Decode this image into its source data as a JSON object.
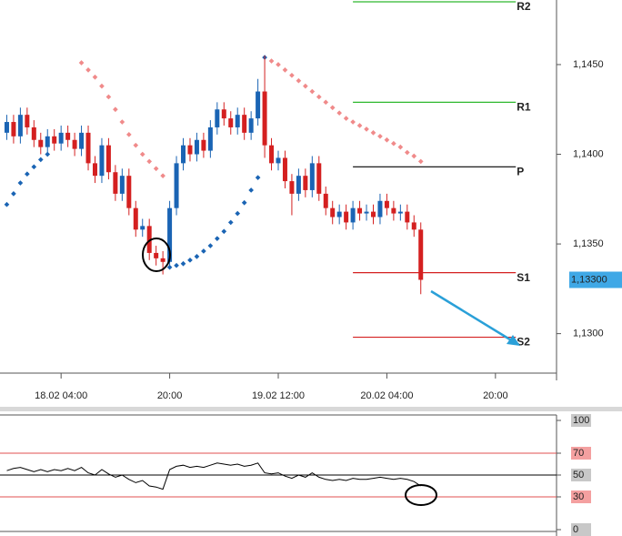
{
  "chart_data": {
    "type": "candlestick",
    "x": [
      "17.02 20:00",
      "17.02 21:00",
      "17.02 22:00",
      "17.02 23:00",
      "18.02 00:00",
      "18.02 01:00",
      "18.02 02:00",
      "18.02 03:00",
      "18.02 04:00",
      "18.02 05:00",
      "18.02 06:00",
      "18.02 07:00",
      "18.02 08:00",
      "18.02 09:00",
      "18.02 10:00",
      "18.02 11:00",
      "18.02 12:00",
      "18.02 13:00",
      "18.02 14:00",
      "18.02 15:00",
      "18.02 16:00",
      "18.02 17:00",
      "18.02 18:00",
      "18.02 19:00",
      "18.02 20:00",
      "18.02 21:00",
      "18.02 22:00",
      "18.02 23:00",
      "19.02 00:00",
      "19.02 01:00",
      "19.02 02:00",
      "19.02 03:00",
      "19.02 04:00",
      "19.02 05:00",
      "19.02 06:00",
      "19.02 07:00",
      "19.02 08:00",
      "19.02 09:00",
      "19.02 10:00",
      "19.02 11:00",
      "19.02 12:00",
      "19.02 13:00",
      "19.02 14:00",
      "19.02 15:00",
      "19.02 16:00",
      "19.02 17:00",
      "19.02 18:00",
      "19.02 19:00",
      "19.02 20:00",
      "19.02 21:00",
      "19.02 22:00",
      "19.02 23:00",
      "20.02 00:00",
      "20.02 01:00",
      "20.02 02:00",
      "20.02 03:00",
      "20.02 04:00",
      "20.02 05:00",
      "20.02 06:00",
      "20.02 07:00",
      "20.02 08:00",
      "20.02 09:00"
    ],
    "open": [
      1.1412,
      1.1418,
      1.141,
      1.1422,
      1.1415,
      1.1408,
      1.1404,
      1.141,
      1.1406,
      1.1412,
      1.1408,
      1.1403,
      1.1412,
      1.1395,
      1.1388,
      1.1405,
      1.139,
      1.1378,
      1.1388,
      1.137,
      1.1358,
      1.136,
      1.1345,
      1.1342,
      1.134,
      1.137,
      1.1395,
      1.1405,
      1.14,
      1.1408,
      1.1402,
      1.1415,
      1.1425,
      1.142,
      1.1415,
      1.1422,
      1.1412,
      1.142,
      1.1435,
      1.1405,
      1.1395,
      1.1398,
      1.1385,
      1.1378,
      1.1388,
      1.138,
      1.1395,
      1.1378,
      1.137,
      1.1365,
      1.1368,
      1.1362,
      1.137,
      1.1367,
      1.1368,
      1.1365,
      1.1374,
      1.137,
      1.1367,
      1.1368,
      1.1362,
      1.1358
    ],
    "high": [
      1.1422,
      1.1422,
      1.1426,
      1.1426,
      1.1419,
      1.1412,
      1.1414,
      1.1414,
      1.1416,
      1.1416,
      1.1412,
      1.1416,
      1.1416,
      1.1399,
      1.1409,
      1.1409,
      1.1394,
      1.1392,
      1.1392,
      1.1374,
      1.1364,
      1.1364,
      1.1349,
      1.1346,
      1.1374,
      1.1399,
      1.1409,
      1.1409,
      1.1412,
      1.1412,
      1.1419,
      1.1429,
      1.1429,
      1.1424,
      1.1426,
      1.1426,
      1.1424,
      1.1442,
      1.1455,
      1.1409,
      1.1402,
      1.1402,
      1.1389,
      1.1392,
      1.1392,
      1.1399,
      1.1399,
      1.1382,
      1.1374,
      1.1372,
      1.1372,
      1.1374,
      1.1374,
      1.1372,
      1.1372,
      1.1378,
      1.1378,
      1.1374,
      1.1372,
      1.1372,
      1.1366,
      1.1362
    ],
    "low": [
      1.1408,
      1.1406,
      1.1406,
      1.1411,
      1.1404,
      1.14,
      1.14,
      1.1402,
      1.1402,
      1.1404,
      1.1399,
      1.1399,
      1.1391,
      1.1384,
      1.1384,
      1.1386,
      1.1374,
      1.1374,
      1.1366,
      1.1354,
      1.1354,
      1.1341,
      1.1338,
      1.1333,
      1.1336,
      1.1366,
      1.1391,
      1.1396,
      1.1396,
      1.1398,
      1.1398,
      1.1411,
      1.1416,
      1.1411,
      1.1411,
      1.1408,
      1.1408,
      1.1416,
      1.1398,
      1.1391,
      1.1391,
      1.1381,
      1.1366,
      1.1374,
      1.1376,
      1.1376,
      1.1374,
      1.1366,
      1.1361,
      1.1361,
      1.1358,
      1.1358,
      1.1363,
      1.1363,
      1.1361,
      1.1361,
      1.1366,
      1.1363,
      1.1363,
      1.1358,
      1.1354,
      1.1322
    ],
    "close": [
      1.1418,
      1.141,
      1.1422,
      1.1415,
      1.1408,
      1.1404,
      1.141,
      1.1406,
      1.1412,
      1.1408,
      1.1403,
      1.1412,
      1.1395,
      1.1388,
      1.1405,
      1.139,
      1.1378,
      1.1388,
      1.137,
      1.1358,
      1.136,
      1.1345,
      1.1342,
      1.134,
      1.137,
      1.1395,
      1.1405,
      1.14,
      1.1408,
      1.1402,
      1.1415,
      1.1425,
      1.142,
      1.1415,
      1.1422,
      1.1412,
      1.142,
      1.1435,
      1.1405,
      1.1395,
      1.1398,
      1.1385,
      1.1378,
      1.1388,
      1.138,
      1.1395,
      1.1378,
      1.137,
      1.1365,
      1.1368,
      1.1362,
      1.137,
      1.1367,
      1.1368,
      1.1365,
      1.1374,
      1.137,
      1.1367,
      1.1368,
      1.1362,
      1.1358,
      1.133
    ],
    "up_color": "#1a64b4",
    "down_color": "#d42020",
    "xlim": [
      "17.02 19:00",
      "21.02 05:00"
    ],
    "xticks": [
      {
        "value": "18.02 04:00",
        "label": "18.02 04:00"
      },
      {
        "value": "18.02 20:00",
        "label": "20:00"
      },
      {
        "value": "19.02 12:00",
        "label": "19.02 12:00"
      },
      {
        "value": "20.02 04:00",
        "label": "20.02 04:00"
      },
      {
        "value": "20.02 20:00",
        "label": "20:00"
      }
    ],
    "ylim": [
      1.1278,
      1.1486
    ],
    "yticks": [
      {
        "value": 1.13,
        "label": "1,1300"
      },
      {
        "value": 1.135,
        "label": "1,1350"
      },
      {
        "value": 1.14,
        "label": "1,1400"
      },
      {
        "value": 1.145,
        "label": "1,1450"
      }
    ],
    "last_price": {
      "value": 1.133,
      "label": "1,13300"
    },
    "pivot_span": [
      "19.02 23:00",
      "20.02 23:00"
    ],
    "pivots": [
      {
        "name": "R2",
        "value": 1.1485,
        "color": "#2db82d"
      },
      {
        "name": "R1",
        "value": 1.1429,
        "color": "#2db82d"
      },
      {
        "name": "P",
        "value": 1.1393,
        "color": "#000000"
      },
      {
        "name": "S1",
        "value": 1.1334,
        "color": "#d42020"
      },
      {
        "name": "S2",
        "value": 1.1298,
        "color": "#d42020"
      }
    ],
    "sar": [
      1.1372,
      1.1378,
      1.1384,
      1.1389,
      1.1393,
      1.1397,
      1.14,
      null,
      null,
      null,
      null,
      1.1451,
      1.1447,
      1.1443,
      1.1438,
      1.1432,
      1.1425,
      1.1418,
      1.1411,
      1.1405,
      1.14,
      1.1396,
      1.1392,
      1.1388,
      1.1337,
      1.1338,
      1.1339,
      1.1341,
      1.1343,
      1.1346,
      1.1349,
      1.1353,
      1.1357,
      1.1362,
      1.1367,
      1.1373,
      1.138,
      1.1387,
      1.1454,
      1.1452,
      1.145,
      1.1447,
      1.1444,
      1.1441,
      1.1438,
      1.1435,
      1.1432,
      1.1429,
      1.1426,
      1.1423,
      1.142,
      1.1418,
      1.1416,
      1.1414,
      1.1412,
      1.141,
      1.1408,
      1.1406,
      1.1404,
      1.1401,
      1.1399,
      1.1396
    ],
    "sar_up_color": "#1a64b4",
    "sar_down_color": "#f08a8a",
    "rsi": {
      "values": [
        54,
        56,
        57,
        55,
        53,
        55,
        53,
        55,
        54,
        56,
        54,
        57,
        52,
        50,
        55,
        51,
        48,
        50,
        46,
        43,
        45,
        40,
        39,
        37,
        55,
        58,
        59,
        57,
        58,
        57,
        59,
        61,
        60,
        59,
        60,
        58,
        59,
        61,
        52,
        51,
        52,
        49,
        47,
        50,
        48,
        52,
        48,
        46,
        45,
        46,
        45,
        47,
        46,
        46,
        47,
        48,
        47,
        46,
        47,
        46,
        44,
        40
      ],
      "ylim": [
        -5,
        105
      ],
      "yticks": [
        0,
        30,
        50,
        70,
        100
      ],
      "levels": [
        30,
        70
      ],
      "mid": 50
    }
  }
}
